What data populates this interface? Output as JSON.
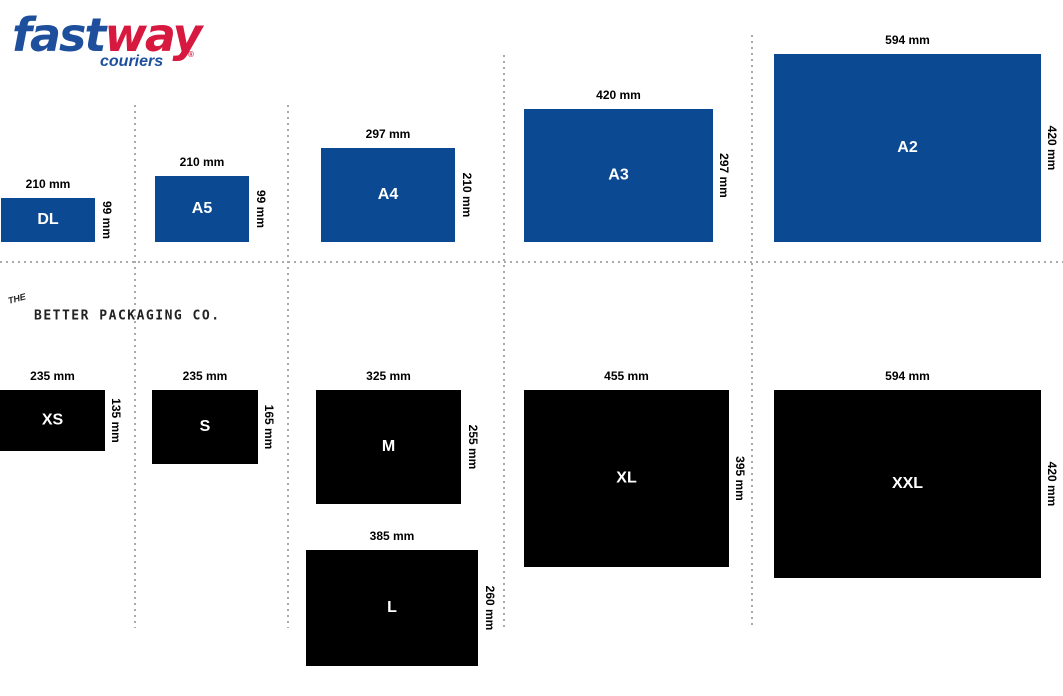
{
  "logo": {
    "part1": "fast",
    "part2": "way",
    "sub": "couriers",
    "mark": "®"
  },
  "brand": {
    "the": "THE",
    "name": "BETTER PACKAGING CO."
  },
  "fastway_sizes": [
    {
      "label": "DL",
      "width": "210 mm",
      "height": "99 mm"
    },
    {
      "label": "A5",
      "width": "210 mm",
      "height": "99 mm"
    },
    {
      "label": "A4",
      "width": "297 mm",
      "height": "210 mm"
    },
    {
      "label": "A3",
      "width": "420 mm",
      "height": "297 mm"
    },
    {
      "label": "A2",
      "width": "594 mm",
      "height": "420 mm"
    }
  ],
  "packaging_sizes": [
    {
      "label": "XS",
      "width": "235 mm",
      "height": "135 mm"
    },
    {
      "label": "S",
      "width": "235 mm",
      "height": "165 mm"
    },
    {
      "label": "M",
      "width": "325 mm",
      "height": "255 mm"
    },
    {
      "label": "L",
      "width": "385 mm",
      "height": "260 mm"
    },
    {
      "label": "XL",
      "width": "455 mm",
      "height": "395 mm"
    },
    {
      "label": "XXL",
      "width": "594 mm",
      "height": "420 mm"
    }
  ]
}
